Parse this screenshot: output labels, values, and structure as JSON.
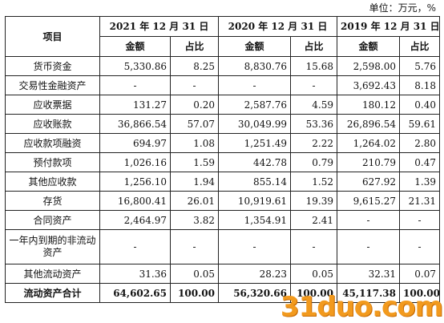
{
  "unit_label": "单位：万元，%",
  "header": {
    "item": "项目",
    "years": [
      "2021 年 12 月 31 日",
      "2020 年 12 月 31 日",
      "2019 年 12 月 31 日"
    ],
    "amount": "金额",
    "ratio": "占比"
  },
  "rows": [
    {
      "label": "货币资金",
      "cells": [
        "5,330.86",
        "8.25",
        "8,830.76",
        "15.68",
        "2,598.00",
        "5.76"
      ]
    },
    {
      "label": "交易性金融资产",
      "cells": [
        "-",
        "-",
        "-",
        "-",
        "3,692.43",
        "8.18"
      ]
    },
    {
      "label": "应收票据",
      "cells": [
        "131.27",
        "0.20",
        "2,587.76",
        "4.59",
        "180.12",
        "0.40"
      ]
    },
    {
      "label": "应收账款",
      "cells": [
        "36,866.54",
        "57.07",
        "30,049.99",
        "53.36",
        "26,896.54",
        "59.61"
      ]
    },
    {
      "label": "应收款项融资",
      "cells": [
        "694.97",
        "1.08",
        "1,251.49",
        "2.22",
        "1,264.02",
        "2.80"
      ]
    },
    {
      "label": "预付款项",
      "cells": [
        "1,026.16",
        "1.59",
        "442.78",
        "0.79",
        "210.79",
        "0.47"
      ]
    },
    {
      "label": "其他应收款",
      "cells": [
        "1,256.10",
        "1.94",
        "855.14",
        "1.52",
        "627.92",
        "1.39"
      ]
    },
    {
      "label": "存货",
      "cells": [
        "16,800.41",
        "26.01",
        "10,919.61",
        "19.39",
        "9,615.27",
        "21.31"
      ]
    },
    {
      "label": "合同资产",
      "cells": [
        "2,464.97",
        "3.82",
        "1,354.91",
        "2.41",
        "-",
        "-"
      ]
    },
    {
      "label": "一年内到期的非流动资产",
      "cells": [
        "-",
        "-",
        "-",
        "-",
        "-",
        "-"
      ]
    },
    {
      "label": "其他流动资产",
      "cells": [
        "31.36",
        "0.05",
        "28.23",
        "0.05",
        "32.31",
        "0.07"
      ]
    },
    {
      "label": "流动资产合计",
      "cells": [
        "64,602.65",
        "100.00",
        "56,320.66",
        "100.00",
        "45,117.38",
        "100.00"
      ]
    }
  ],
  "watermark": "31duo.com"
}
